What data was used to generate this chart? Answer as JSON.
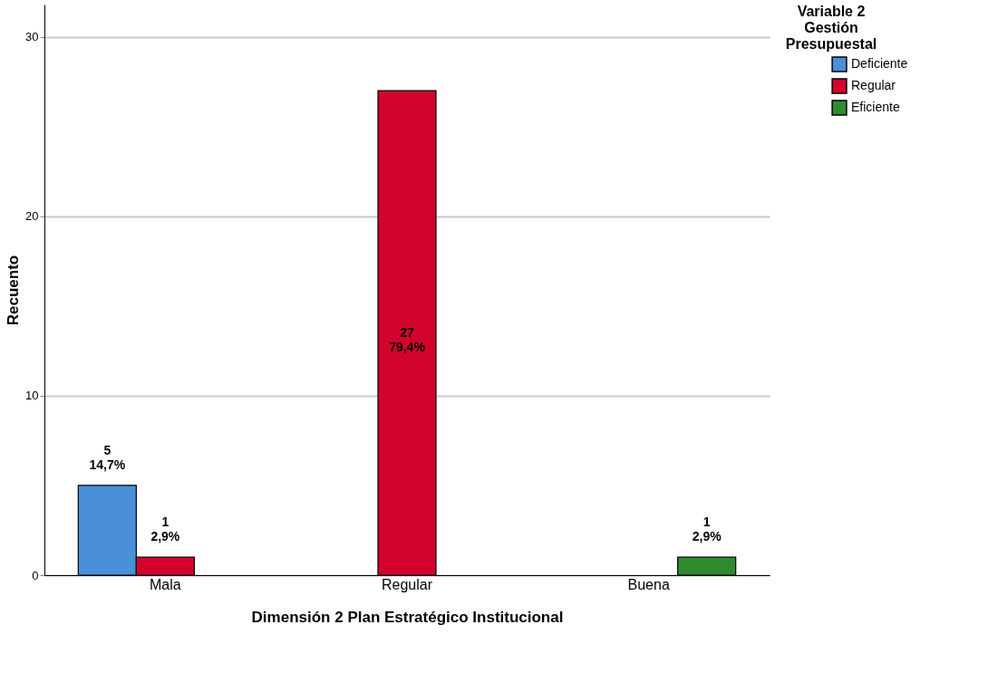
{
  "chart_data": {
    "type": "bar",
    "xlabel": "Dimensión 2 Plan Estratégico Institucional",
    "ylabel": "Recuento",
    "legend_title": "Variable 2\nGestión\nPresupuestal",
    "categories": [
      "Mala",
      "Regular",
      "Buena"
    ],
    "series": [
      {
        "name": "Deficiente",
        "color": "#4a90d9",
        "values": [
          5,
          null,
          null
        ],
        "value_labels": [
          "5\n14,7%",
          null,
          null
        ]
      },
      {
        "name": "Regular",
        "color": "#d2042d",
        "values": [
          1,
          27,
          null
        ],
        "value_labels": [
          "1\n2,9%",
          "27\n79,4%",
          null
        ]
      },
      {
        "name": "Eficiente",
        "color": "#2e8b2e",
        "values": [
          null,
          null,
          1
        ],
        "value_labels": [
          null,
          null,
          "1\n2,9%"
        ]
      }
    ],
    "ylim": [
      0,
      31.8
    ],
    "yticks": [
      0,
      10,
      20,
      30
    ],
    "grid": "y",
    "legend": "top right"
  }
}
